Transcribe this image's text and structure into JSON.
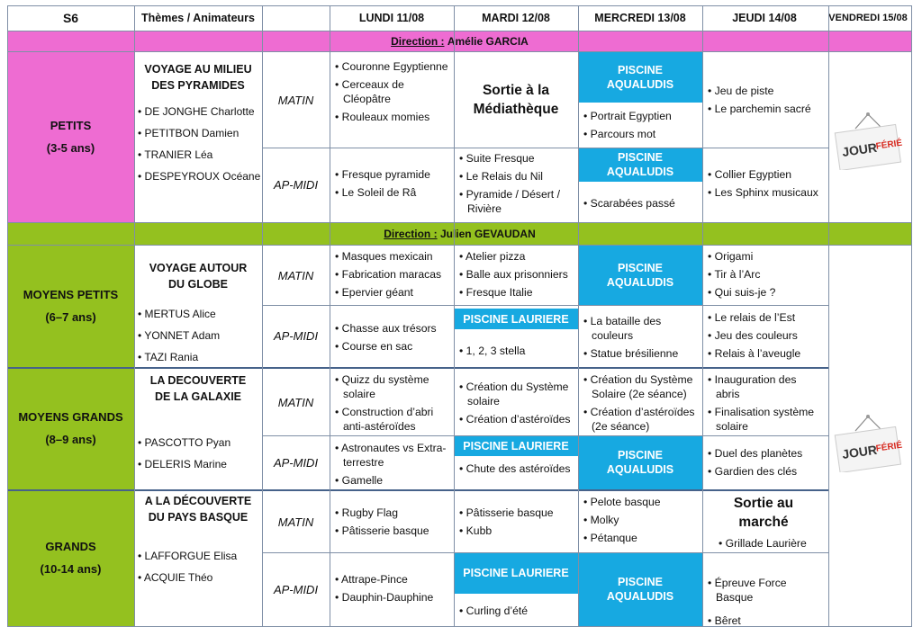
{
  "header": {
    "week": "S6",
    "themes": "Thèmes / Animateurs",
    "lundi": "LUNDI  11/08",
    "mardi": "MARDI  12/08",
    "mercredi": "MERCREDI  13/08",
    "jeudi": "JEUDI  14/08",
    "vendredi": "VENDREDI 15/08"
  },
  "slots": {
    "matin": "MATIN",
    "apmidi": "AP-MIDI"
  },
  "direction1": {
    "label": "Direction :",
    "name": "Amélie GARCIA"
  },
  "direction2": {
    "label": "Direction :",
    "name": "Julien GEVAUDAN"
  },
  "ferie": {
    "text1": "JOUR",
    "text2": "FÉRIÉ"
  },
  "petits": {
    "name": "PETITS",
    "age": "(3-5 ans)",
    "theme": "VOYAGE AU MILIEU DES PYRAMIDES",
    "animateurs": [
      "DE JONGHE  Charlotte",
      "PETITBON  Damien",
      "TRANIER  Léa",
      "DESPEYROUX  Océane"
    ],
    "lundi_matin": [
      "Couronne Egyptienne",
      "Cerceaux de Cléopâtre",
      "Rouleaux momies"
    ],
    "mardi_matin": "Sortie à la Médiathèque",
    "mercredi_matin_piscine": "PISCINE AQUALUDIS",
    "mercredi_matin": [
      "Portrait Egyptien",
      "Parcours mot"
    ],
    "jeudi_matin": [
      "Jeu de piste",
      "Le parchemin sacré"
    ],
    "lundi_ap": [
      "Fresque pyramide",
      "Le Soleil de Râ"
    ],
    "mardi_ap": [
      "Suite Fresque",
      "Le Relais du Nil",
      "Pyramide / Désert / Rivière"
    ],
    "mercredi_ap_piscine": "PISCINE AQUALUDIS",
    "mercredi_ap": [
      "Scarabées passé"
    ],
    "jeudi_ap": [
      "Collier Egyptien",
      "Les Sphinx musicaux"
    ]
  },
  "moyens_petits": {
    "name": "MOYENS PETITS",
    "age": "(6–7 ans)",
    "theme": "VOYAGE  AUTOUR DU GLOBE",
    "animateurs": [
      "MERTUS Alice",
      "YONNET Adam",
      "TAZI Rania"
    ],
    "lundi_matin": [
      "Masques mexicain",
      "Fabrication maracas",
      "Epervier géant"
    ],
    "mardi_matin": [
      "Atelier pizza",
      "Balle aux prisonniers",
      "Fresque Italie"
    ],
    "mercredi_matin_piscine": "PISCINE AQUALUDIS",
    "jeudi_matin": [
      "Origami",
      "Tir à l’Arc",
      "Qui suis-je ?"
    ],
    "lundi_ap": [
      "Chasse aux trésors",
      "Course en sac"
    ],
    "mardi_ap_piscine": "PISCINE  LAURIERE",
    "mardi_ap": [
      "1, 2, 3 stella"
    ],
    "mercredi_ap": [
      "La bataille des couleurs",
      "Statue brésilienne"
    ],
    "jeudi_ap": [
      "Le relais de l’Est",
      "Jeu des couleurs",
      "Relais à l’aveugle"
    ]
  },
  "moyens_grands": {
    "name": "MOYENS GRANDS",
    "age": "(8–9 ans)",
    "theme": "LA DECOUVERTE DE LA GALAXIE",
    "animateurs": [
      "PASCOTTO Pyan",
      "DELERIS Marine"
    ],
    "lundi_matin": [
      "Quizz du système solaire",
      "Construction d’abri anti-astéroïdes"
    ],
    "mardi_matin": [
      "Création du Système solaire",
      "Création d’astéroïdes"
    ],
    "mercredi_matin": [
      "Création du Système Solaire (2e séance)",
      "Création d’astéroïdes (2e séance)"
    ],
    "jeudi_matin": [
      "Inauguration des abris",
      "Finalisation système solaire"
    ],
    "lundi_ap": [
      "Astronautes vs Extra-terrestre",
      "Gamelle"
    ],
    "mardi_ap_piscine": "PISCINE  LAURIERE",
    "mardi_ap": [
      "Chute des astéroïdes"
    ],
    "mercredi_ap_piscine": "PISCINE AQUALUDIS",
    "jeudi_ap": [
      "Duel des planètes",
      "Gardien des clés"
    ]
  },
  "grands": {
    "name": "GRANDS",
    "age": "(10-14 ans)",
    "theme": "A LA DÉCOUVERTE DU PAYS BASQUE",
    "animateurs": [
      "LAFFORGUE Elisa",
      "ACQUIE  Théo"
    ],
    "lundi_matin": [
      "Rugby Flag",
      "Pâtisserie basque"
    ],
    "mardi_matin": [
      "Pâtisserie basque",
      "Kubb"
    ],
    "mercredi_matin": [
      "Pelote basque",
      "Molky",
      "Pétanque"
    ],
    "jeudi_matin_big": "Sortie au marché",
    "jeudi_matin": [
      "Grillade Laurière"
    ],
    "lundi_ap": [
      "Attrape-Pince",
      "Dauphin-Dauphine"
    ],
    "mardi_ap_piscine": "PISCINE  LAURIERE",
    "mardi_ap": [
      "Curling d’été"
    ],
    "mercredi_ap_piscine": "PISCINE AQUALUDIS",
    "jeudi_ap": [
      "Épreuve Force Basque",
      "Bêret"
    ]
  },
  "colors": {
    "pink": "#ee6cd2",
    "green": "#94c11f",
    "blue": "#17a9e1",
    "ferie_red": "#d7281e"
  }
}
